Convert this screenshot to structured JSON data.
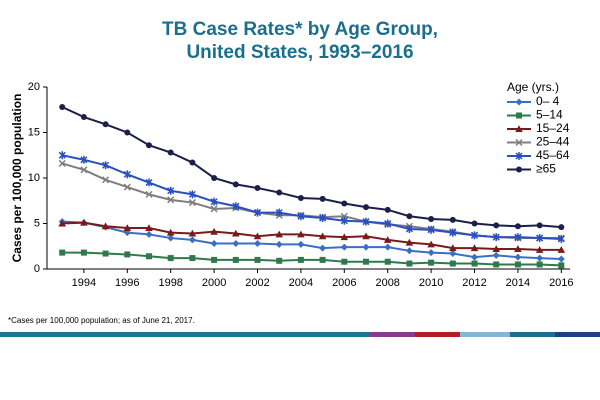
{
  "chart_data": {
    "type": "line",
    "title": [
      "TB Case Rates* by Age Group,",
      "United States, 1993–2016"
    ],
    "y_label": "Cases per 100,000 population",
    "legend_title": "Age (yrs.)",
    "footnote": "*Cases per 100,000  population; as of June 21, 2017.",
    "x": [
      1993,
      1994,
      1995,
      1996,
      1997,
      1998,
      1999,
      2000,
      2001,
      2002,
      2003,
      2004,
      2005,
      2006,
      2007,
      2008,
      2009,
      2010,
      2011,
      2012,
      2013,
      2014,
      2015,
      2016
    ],
    "xlim": [
      1992.3,
      2016.4
    ],
    "xticks": [
      1994,
      1996,
      1998,
      2000,
      2002,
      2004,
      2006,
      2008,
      2010,
      2012,
      2014,
      2016
    ],
    "ylim": [
      0,
      20
    ],
    "yticks": [
      0,
      5,
      10,
      15,
      20
    ],
    "series": [
      {
        "name": "0– 4",
        "color": "#3a6fc4",
        "marker": "diamond",
        "values": [
          5.2,
          5.1,
          4.6,
          4.0,
          3.8,
          3.4,
          3.2,
          2.8,
          2.8,
          2.8,
          2.7,
          2.7,
          2.3,
          2.4,
          2.4,
          2.4,
          2.0,
          1.8,
          1.7,
          1.3,
          1.5,
          1.3,
          1.2,
          1.1
        ]
      },
      {
        "name": "5–14",
        "color": "#2e7a4a",
        "marker": "square",
        "values": [
          1.8,
          1.8,
          1.7,
          1.6,
          1.4,
          1.2,
          1.2,
          1.0,
          1.0,
          1.0,
          0.9,
          1.0,
          1.0,
          0.8,
          0.8,
          0.8,
          0.6,
          0.7,
          0.6,
          0.6,
          0.5,
          0.5,
          0.5,
          0.4
        ]
      },
      {
        "name": "15–24",
        "color": "#7a1a1a",
        "marker": "triangle",
        "values": [
          5.0,
          5.1,
          4.7,
          4.5,
          4.5,
          4.0,
          3.9,
          4.1,
          3.9,
          3.6,
          3.8,
          3.8,
          3.6,
          3.5,
          3.6,
          3.2,
          2.9,
          2.7,
          2.3,
          2.3,
          2.2,
          2.2,
          2.1,
          2.1
        ]
      },
      {
        "name": "25–44",
        "color": "#7f7f7f",
        "marker": "x",
        "values": [
          11.6,
          10.9,
          9.8,
          9.0,
          8.2,
          7.6,
          7.3,
          6.6,
          6.7,
          6.2,
          5.9,
          5.9,
          5.7,
          5.8,
          5.2,
          4.9,
          4.7,
          4.4,
          4.1,
          3.7,
          3.5,
          3.4,
          3.4,
          3.4
        ]
      },
      {
        "name": "45–64",
        "color": "#2a4fc0",
        "marker": "star",
        "values": [
          12.5,
          12.0,
          11.4,
          10.4,
          9.5,
          8.6,
          8.2,
          7.4,
          6.9,
          6.2,
          6.2,
          5.8,
          5.6,
          5.3,
          5.2,
          5.0,
          4.4,
          4.3,
          4.0,
          3.7,
          3.5,
          3.5,
          3.4,
          3.3
        ]
      },
      {
        "name": "≥65",
        "color": "#1b1f4a",
        "marker": "circle",
        "values": [
          17.8,
          16.7,
          15.9,
          15.0,
          13.6,
          12.8,
          11.7,
          10.0,
          9.3,
          8.9,
          8.4,
          7.8,
          7.7,
          7.2,
          6.8,
          6.5,
          5.8,
          5.5,
          5.4,
          5.0,
          4.8,
          4.7,
          4.8,
          4.6
        ]
      }
    ]
  }
}
